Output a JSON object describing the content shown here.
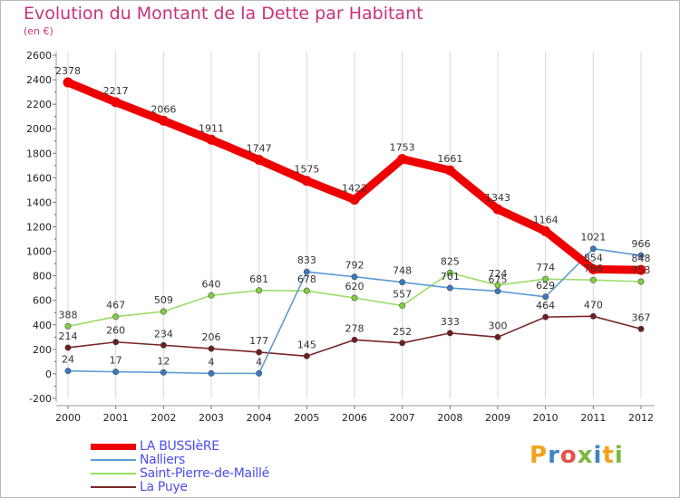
{
  "title": "Evolution du Montant de la Dette par Habitant",
  "subtitle": "(en €)",
  "logo": "Proxiti",
  "chart_data": {
    "type": "line",
    "title": "Evolution du Montant de la Dette par Habitant",
    "subtitle": "(en €)",
    "ylim": [
      -200,
      2600
    ],
    "yticks": [
      -200,
      0,
      200,
      400,
      600,
      800,
      1000,
      1200,
      1400,
      1600,
      1800,
      2000,
      2200,
      2400,
      2600
    ],
    "categories": [
      "2000",
      "2001",
      "2002",
      "2003",
      "2004",
      "2005",
      "2006",
      "2007",
      "2008",
      "2009",
      "2010",
      "2011",
      "2012"
    ],
    "grid": "vertical",
    "legend_position": "bottom-left",
    "series": [
      {
        "name": "LA BUSSIèRE",
        "color": "#ee0000",
        "style": "thick",
        "values": [
          2378,
          2217,
          2066,
          1911,
          1747,
          1575,
          1422,
          1753,
          1661,
          1343,
          1164,
          854,
          848
        ],
        "labels": [
          "2378",
          "2217",
          "2066",
          "1911",
          "1747",
          "1575",
          "1422",
          "1753",
          "1661",
          "1343",
          "1164",
          "854",
          "848"
        ]
      },
      {
        "name": "Nalliers",
        "color": "#5b9bd5",
        "marker": "#3a78c2",
        "values": [
          24,
          17,
          12,
          4,
          4,
          833,
          792,
          748,
          701,
          675,
          629,
          1021,
          966
        ],
        "labels": [
          "24",
          "17",
          "12",
          "4",
          "4",
          "833",
          "792",
          "748",
          "701",
          "675",
          "629",
          "1021",
          "966"
        ]
      },
      {
        "name": "Saint-Pierre-de-Maillé",
        "color": "#99dd66",
        "marker": "#7ed040",
        "values": [
          388,
          467,
          509,
          640,
          681,
          678,
          620,
          557,
          825,
          724,
          774,
          766,
          753
        ],
        "labels": [
          "388",
          "467",
          "509",
          "640",
          "681",
          "678",
          "620",
          "557",
          "825",
          "724",
          "774",
          "766",
          "753"
        ]
      },
      {
        "name": "La Puye",
        "color": "#7a2626",
        "marker": "#6b1d1d",
        "values": [
          214,
          260,
          234,
          206,
          177,
          145,
          278,
          252,
          333,
          300,
          464,
          470,
          367
        ],
        "labels": [
          "214",
          "260",
          "234",
          "206",
          "177",
          "145",
          "278",
          "252",
          "333",
          "300",
          "464",
          "470",
          "367"
        ]
      }
    ]
  }
}
